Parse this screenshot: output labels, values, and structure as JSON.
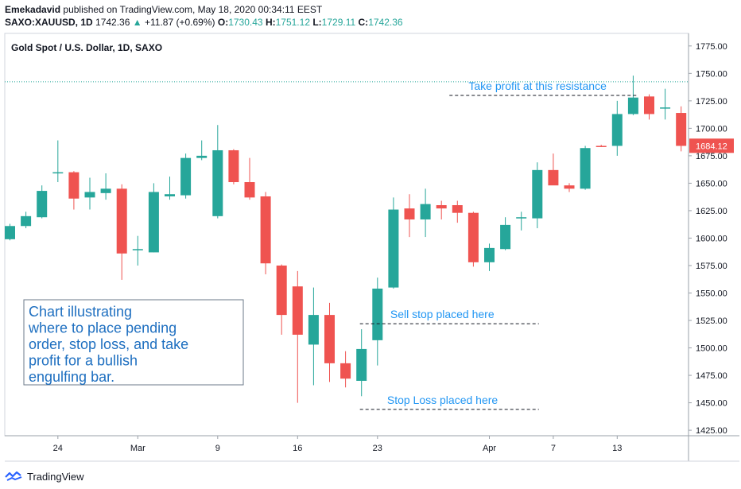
{
  "header": {
    "author": "Emekadavid",
    "published_text": "published on TradingView.com, May 18, 2020 00:34:11 EEST",
    "symbol": "SAXO:XAUUSD, 1D",
    "last": "1742.36",
    "change": "+11.87 (+0.69%)",
    "o_label": "O:",
    "o_value": "1730.43",
    "h_label": "H:",
    "h_value": "1751.12",
    "l_label": "L:",
    "l_value": "1729.11",
    "c_label": "C:",
    "c_value": "1742.36"
  },
  "chart_data": {
    "type": "candlestick",
    "title": "Gold Spot / U.S. Dollar, 1D, SAXO",
    "x_tick_labels": [
      {
        "index": 3,
        "label": "24"
      },
      {
        "index": 8,
        "label": "Mar"
      },
      {
        "index": 13,
        "label": "9"
      },
      {
        "index": 18,
        "label": "16"
      },
      {
        "index": 23,
        "label": "23"
      },
      {
        "index": 30,
        "label": "Apr"
      },
      {
        "index": 34,
        "label": "7"
      },
      {
        "index": 38,
        "label": "13"
      }
    ],
    "y_ticks": [
      1425,
      1450,
      1475,
      1500,
      1525,
      1550,
      1575,
      1600,
      1625,
      1650,
      1675,
      1700,
      1725,
      1750,
      1775
    ],
    "y_tick_labels": [
      "1425.00",
      "1450.00",
      "1475.00",
      "1500.00",
      "1525.00",
      "1550.00",
      "1575.00",
      "1600.00",
      "1625.00",
      "1650.00",
      "1675.00",
      "1700.00",
      "1725.00",
      "1750.00",
      "1775.00"
    ],
    "ylim": [
      1420,
      1785
    ],
    "candles": [
      {
        "o": 1599,
        "h": 1613,
        "l": 1598,
        "c": 1611
      },
      {
        "o": 1611,
        "h": 1624,
        "l": 1609,
        "c": 1620
      },
      {
        "o": 1619,
        "h": 1648,
        "l": 1618,
        "c": 1643
      },
      {
        "o": 1659,
        "h": 1689,
        "l": 1651,
        "c": 1660
      },
      {
        "o": 1660,
        "h": 1661,
        "l": 1626,
        "c": 1636
      },
      {
        "o": 1637,
        "h": 1655,
        "l": 1626,
        "c": 1642
      },
      {
        "o": 1641,
        "h": 1659,
        "l": 1635,
        "c": 1645
      },
      {
        "o": 1645,
        "h": 1649,
        "l": 1562,
        "c": 1586
      },
      {
        "o": 1589,
        "h": 1602,
        "l": 1575,
        "c": 1590
      },
      {
        "o": 1587,
        "h": 1650,
        "l": 1587,
        "c": 1642
      },
      {
        "o": 1638,
        "h": 1656,
        "l": 1635,
        "c": 1640
      },
      {
        "o": 1639,
        "h": 1677,
        "l": 1636,
        "c": 1673
      },
      {
        "o": 1673,
        "h": 1689,
        "l": 1671,
        "c": 1675
      },
      {
        "o": 1620,
        "h": 1703,
        "l": 1618,
        "c": 1680
      },
      {
        "o": 1680,
        "h": 1681,
        "l": 1649,
        "c": 1651
      },
      {
        "o": 1651,
        "h": 1673,
        "l": 1635,
        "c": 1637
      },
      {
        "o": 1638,
        "h": 1642,
        "l": 1567,
        "c": 1577
      },
      {
        "o": 1575,
        "h": 1576,
        "l": 1512,
        "c": 1530
      },
      {
        "o": 1556,
        "h": 1570,
        "l": 1450,
        "c": 1512
      },
      {
        "o": 1503,
        "h": 1555,
        "l": 1466,
        "c": 1530
      },
      {
        "o": 1530,
        "h": 1541,
        "l": 1469,
        "c": 1486
      },
      {
        "o": 1486,
        "h": 1497,
        "l": 1464,
        "c": 1472
      },
      {
        "o": 1470,
        "h": 1517,
        "l": 1456,
        "c": 1499
      },
      {
        "o": 1507,
        "h": 1564,
        "l": 1484,
        "c": 1554
      },
      {
        "o": 1555,
        "h": 1637,
        "l": 1554,
        "c": 1626
      },
      {
        "o": 1627,
        "h": 1640,
        "l": 1601,
        "c": 1617
      },
      {
        "o": 1617,
        "h": 1645,
        "l": 1601,
        "c": 1631
      },
      {
        "o": 1630,
        "h": 1634,
        "l": 1617,
        "c": 1627
      },
      {
        "o": 1630,
        "h": 1634,
        "l": 1614,
        "c": 1623
      },
      {
        "o": 1623,
        "h": 1624,
        "l": 1574,
        "c": 1578
      },
      {
        "o": 1578,
        "h": 1595,
        "l": 1570,
        "c": 1591
      },
      {
        "o": 1590,
        "h": 1619,
        "l": 1589,
        "c": 1612
      },
      {
        "o": 1618,
        "h": 1624,
        "l": 1607,
        "c": 1619
      },
      {
        "o": 1618,
        "h": 1669,
        "l": 1609,
        "c": 1662
      },
      {
        "o": 1662,
        "h": 1677,
        "l": 1649,
        "c": 1648
      },
      {
        "o": 1648,
        "h": 1650,
        "l": 1642,
        "c": 1645
      },
      {
        "o": 1645,
        "h": 1684,
        "l": 1644,
        "c": 1682
      },
      {
        "o": 1684,
        "h": 1685,
        "l": 1683,
        "c": 1683
      },
      {
        "o": 1684,
        "h": 1725,
        "l": 1675,
        "c": 1713
      },
      {
        "o": 1713,
        "h": 1748,
        "l": 1712,
        "c": 1728
      },
      {
        "o": 1729,
        "h": 1731,
        "l": 1708,
        "c": 1713
      },
      {
        "o": 1718,
        "h": 1736,
        "l": 1708,
        "c": 1719
      },
      {
        "o": 1714,
        "h": 1720,
        "l": 1679,
        "c": 1684
      }
    ],
    "price_line": {
      "value": 1742.36
    },
    "last_price_label": "1684.12",
    "last_price": 1684.12,
    "annotations": {
      "take_profit": {
        "text": "Take profit at this resistance",
        "value": 1730
      },
      "sell_stop": {
        "text": "Sell stop placed  here",
        "value": 1522
      },
      "stop_loss": {
        "text": "Stop Loss placed here",
        "value": 1444
      },
      "note": "Chart illustrating where to place pending order, stop loss, and take profit for a bullish engulfing bar."
    },
    "colors": {
      "up": "#26a69a",
      "down": "#ef5350",
      "annotation": "#2196f3",
      "note": "#1e6fc0",
      "price_line": "#26a69a"
    }
  },
  "footer": {
    "brand": "TradingView"
  }
}
